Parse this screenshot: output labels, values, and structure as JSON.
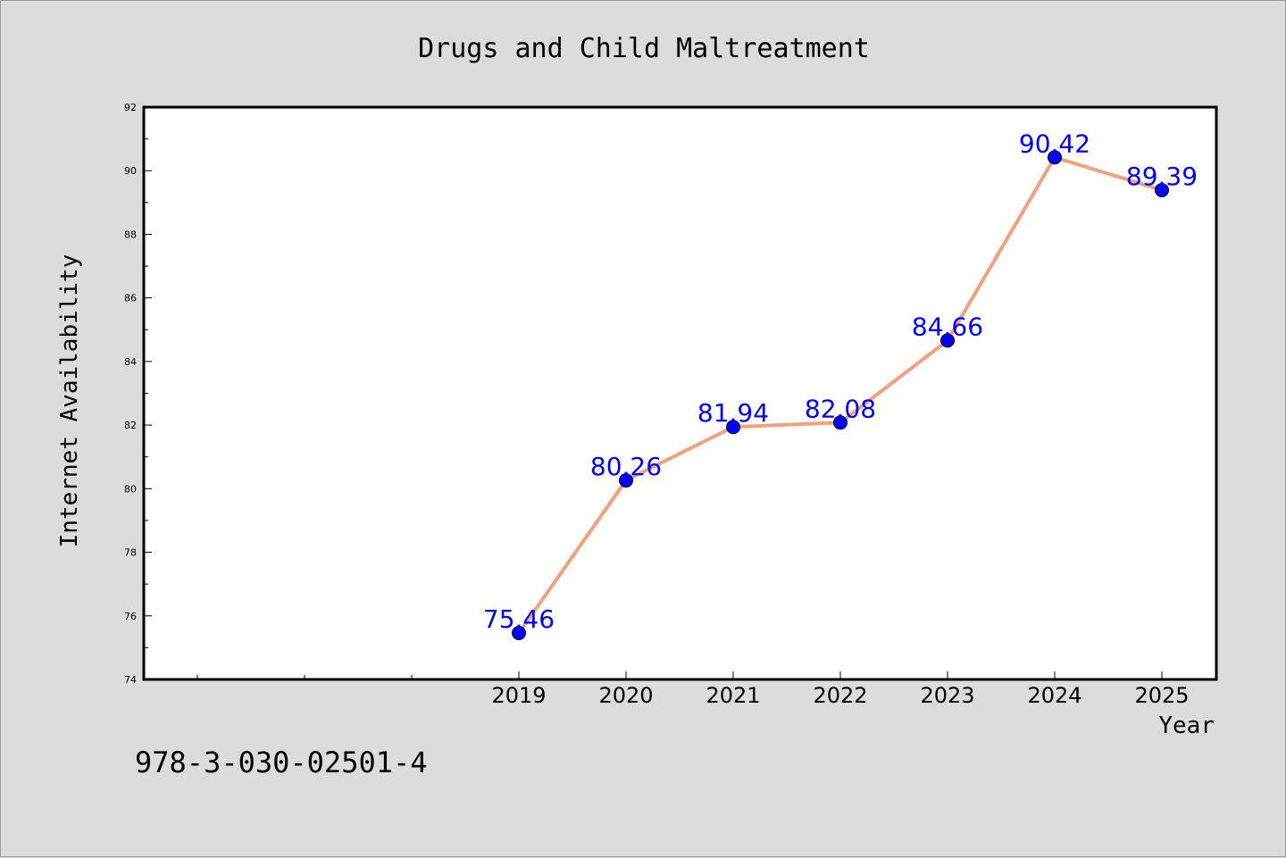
{
  "chart_data": {
    "type": "line",
    "title": "Drugs and Child Maltreatment",
    "xlabel": "Year",
    "ylabel": "Internet Availability",
    "categories": [
      "2019",
      "2020",
      "2021",
      "2022",
      "2023",
      "2024",
      "2025"
    ],
    "series": [
      {
        "values": [
          75.46,
          80.26,
          81.94,
          82.08,
          84.66,
          90.42,
          89.39
        ]
      }
    ],
    "data_labels": [
      "75.46",
      "80.26",
      "81.94",
      "82.08",
      "84.66",
      "90.42",
      "89.39"
    ],
    "ylim": [
      74,
      92
    ],
    "yticks": [
      74,
      76,
      78,
      80,
      82,
      84,
      86,
      88,
      90,
      92
    ],
    "ytick_labels": [
      "74",
      "76",
      "78",
      "80",
      "82",
      "84",
      "86",
      "88",
      "90",
      "92"
    ],
    "grid": false,
    "legend": "none",
    "colors": {
      "line": "#f4a07c",
      "marker": "#0000ff",
      "data_label": "#0000ff",
      "background": "#dcdcdc",
      "plot_background": "#ffffff"
    }
  },
  "footer": {
    "identifier": "978-3-030-02501-4"
  }
}
